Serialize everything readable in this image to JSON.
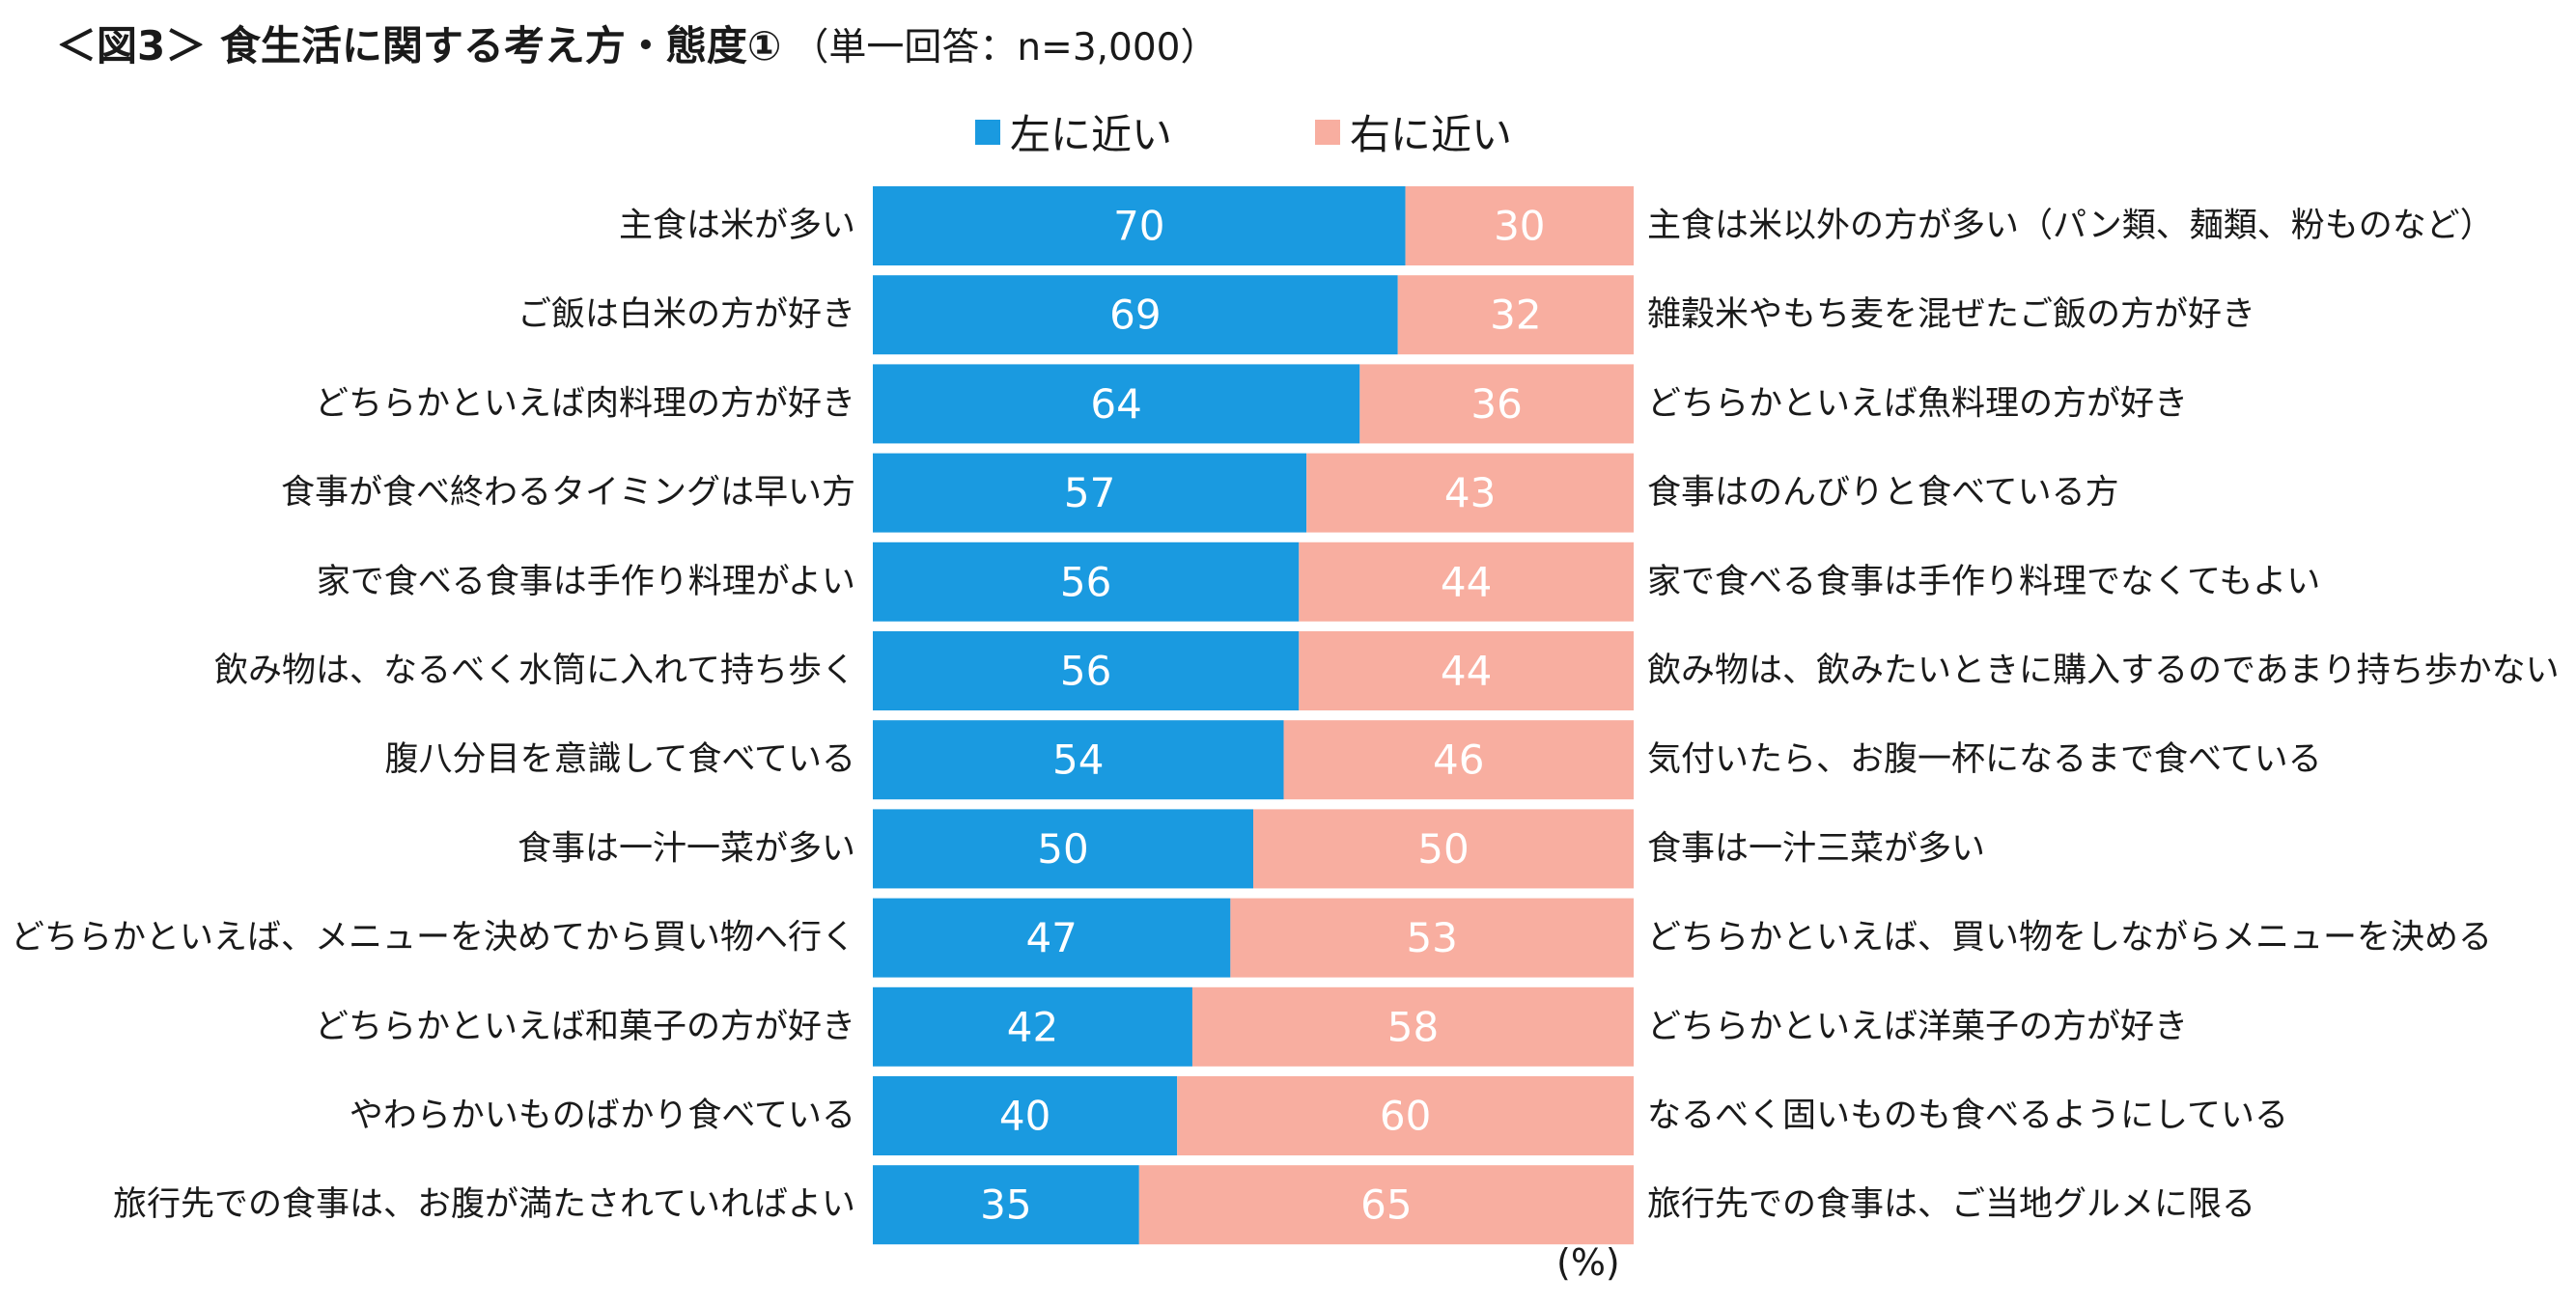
{
  "title": {
    "main": "＜図3＞ 食生活に関する考え方・態度①",
    "sub": "（単一回答：n=3,000）"
  },
  "legend": {
    "left_label": "左に近い",
    "right_label": "右に近い"
  },
  "colors": {
    "left": "#1a9ae0",
    "right": "#f8aea0",
    "left_text": "#ffffff",
    "right_text": "#ffffff"
  },
  "unit_label": "(%)",
  "chart_data": {
    "type": "bar",
    "orientation": "horizontal-stacked-100",
    "series": [
      {
        "name": "左に近い",
        "values": [
          70,
          69,
          64,
          57,
          56,
          56,
          54,
          50,
          47,
          42,
          40,
          35
        ]
      },
      {
        "name": "右に近い",
        "values": [
          30,
          32,
          36,
          43,
          44,
          44,
          46,
          50,
          53,
          58,
          60,
          65
        ]
      }
    ],
    "left_categories": [
      "主食は米が多い",
      "ご飯は白米の方が好き",
      "どちらかといえば肉料理の方が好き",
      "食事が食べ終わるタイミングは早い方",
      "家で食べる食事は手作り料理がよい",
      "飲み物は、なるべく水筒に入れて持ち歩く",
      "腹八分目を意識して食べている",
      "食事は一汁一菜が多い",
      "どちらかといえば、メニューを決めてから買い物へ行く",
      "どちらかといえば和菓子の方が好き",
      "やわらかいものばかり食べている",
      "旅行先での食事は、お腹が満たされていればよい"
    ],
    "right_categories": [
      "主食は米以外の方が多い（パン類、麺類、粉ものなど）",
      "雑穀米やもち麦を混ぜたご飯の方が好き",
      "どちらかといえば魚料理の方が好き",
      "食事はのんびりと食べている方",
      "家で食べる食事は手作り料理でなくてもよい",
      "飲み物は、飲みたいときに購入するのであまり持ち歩かない",
      "気付いたら、お腹一杯になるまで食べている",
      "食事は一汁三菜が多い",
      "どちらかといえば、買い物をしながらメニューを決める",
      "どちらかといえば洋菓子の方が好き",
      "なるべく固いものも食べるようにしている",
      "旅行先での食事は、ご当地グルメに限る"
    ],
    "xlim": [
      0,
      100
    ],
    "unit": "%"
  }
}
